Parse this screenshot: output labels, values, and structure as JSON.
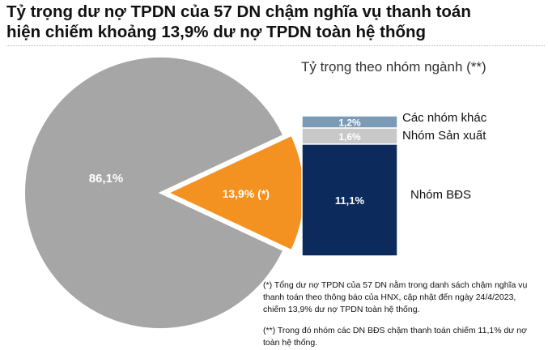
{
  "title_line1": "Tỷ trọng dư nợ TPDN của 57 DN chậm nghĩa vụ thanh toán",
  "title_line2": "hiện chiếm khoảng 13,9% dư nợ TPDN toàn hệ thống",
  "note1": "(*) Tổng dư nợ TPDN của 57 DN nằm trong danh sách chậm nghĩa vụ thanh toán theo thông báo của HNX, cập nhật đến ngày 24/4/2023, chiếm 13,9% dư nợ TPDN toàn hệ thống.",
  "note2": "(**) Trong đó nhóm các DN BĐS chậm thanh toán chiếm 11,1% dư nợ toàn hệ thống.",
  "chart_data": [
    {
      "type": "pie",
      "slices": [
        {
          "label": "86,1%",
          "value": 86.1,
          "color": "#a6a6a6"
        },
        {
          "label": "13,9% (*)",
          "value": 13.9,
          "color": "#f39121",
          "exploded": true
        }
      ]
    },
    {
      "type": "bar",
      "stacked": true,
      "title": "Tỷ trọng theo nhóm ngành (**)",
      "series": [
        {
          "name": "Nhóm BĐS",
          "value": 11.1,
          "label": "11,1%",
          "color": "#0d2a5c"
        },
        {
          "name": "Nhóm Sản xuất",
          "value": 1.6,
          "label": "1,6%",
          "color": "#c8c8c8"
        },
        {
          "name": "Các nhóm khác",
          "value": 1.2,
          "label": "1,2%",
          "color": "#7b9ab5"
        }
      ]
    }
  ]
}
